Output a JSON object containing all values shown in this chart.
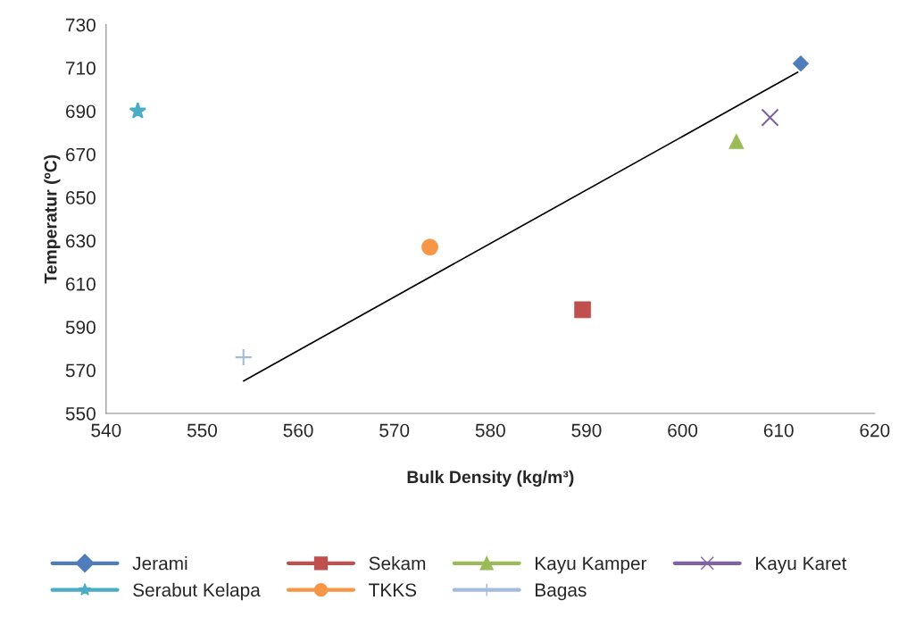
{
  "chart_data": {
    "type": "scatter",
    "xlabel": "Bulk Density (kg/m³)",
    "ylabel": "Temperatur (ºC)",
    "xlim": [
      540,
      620
    ],
    "xticks": [
      540,
      550,
      560,
      570,
      580,
      590,
      600,
      610,
      620
    ],
    "ylim": [
      550,
      730
    ],
    "yticks": [
      550,
      570,
      590,
      610,
      630,
      650,
      670,
      690,
      710,
      730
    ],
    "grid": false,
    "legend": "bottom",
    "series": [
      {
        "name": "Jerami",
        "color": "#4f7dbb",
        "marker": "diamond",
        "x": [
          612.3
        ],
        "values": [
          712
        ]
      },
      {
        "name": "Sekam",
        "color": "#c0504d",
        "marker": "square",
        "x": [
          589.6
        ],
        "values": [
          598
        ]
      },
      {
        "name": "Kayu Kamper",
        "color": "#9bbb59",
        "marker": "triangle",
        "x": [
          605.6
        ],
        "values": [
          676
        ]
      },
      {
        "name": "Kayu Karet",
        "color": "#8064a2",
        "marker": "cross",
        "x": [
          609.1
        ],
        "values": [
          687
        ]
      },
      {
        "name": "Serabut Kelapa",
        "color": "#4bacc6",
        "marker": "star",
        "x": [
          543.3
        ],
        "values": [
          690
        ]
      },
      {
        "name": "TKKS",
        "color": "#f79646",
        "marker": "circle",
        "x": [
          573.7
        ],
        "values": [
          627
        ]
      },
      {
        "name": "Bagas",
        "color": "#a5bbdd",
        "marker": "plus",
        "x": [
          554.3
        ],
        "values": [
          576
        ]
      },
      {
        "type": "line",
        "color": "#000000",
        "marker": "none",
        "x": [
          554.3,
          612.0
        ],
        "values": [
          565,
          708
        ]
      }
    ]
  }
}
